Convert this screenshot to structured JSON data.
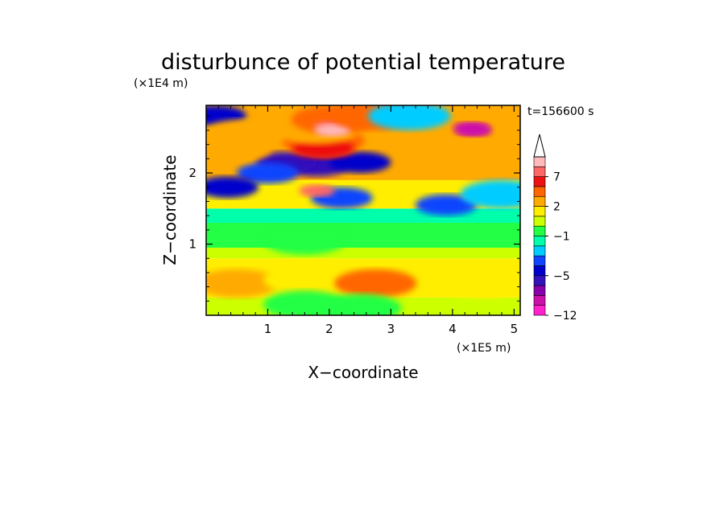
{
  "chart_data": {
    "type": "heatmap",
    "title": "disturbunce of potential temperature",
    "xlabel": "X−coordinate",
    "ylabel": "Z−coordinate",
    "x_unit": "(×1E5 m)",
    "y_unit": "(×1E4 m)",
    "time_label": "t=156600 s",
    "xlim": [
      0,
      5.1
    ],
    "ylim": [
      0,
      2.95
    ],
    "x_ticks": [
      1,
      2,
      3,
      4,
      5
    ],
    "x_tick_labels": [
      "1",
      "2",
      "3",
      "4",
      "5"
    ],
    "y_ticks": [
      1,
      2
    ],
    "y_tick_labels": [
      "1",
      "2"
    ],
    "colorbar": {
      "levels": [
        -12,
        -10,
        -8,
        -6,
        -5,
        -4,
        -3,
        -2,
        -1,
        0,
        1,
        2,
        3,
        5,
        7,
        9
      ],
      "colors": [
        "#ff22cc",
        "#cc10aa",
        "#8800aa",
        "#3311bb",
        "#0000cc",
        "#1144ff",
        "#00ccff",
        "#00ffaa",
        "#22ff44",
        "#ccff00",
        "#ffee00",
        "#ffaa00",
        "#ff6600",
        "#ee1111",
        "#ff6666",
        "#ffbbbb"
      ],
      "tick_values": [
        -12,
        -5,
        -1,
        2,
        7
      ],
      "tick_labels": [
        "−12",
        "−5",
        "−1",
        "2",
        "7"
      ],
      "extend": "max"
    },
    "features": [
      {
        "x": 4.35,
        "z": 2.6,
        "value": -10
      },
      {
        "x": 4.3,
        "z": 2.63,
        "value": -9
      },
      {
        "x": 1.8,
        "z": 2.1,
        "value": -6
      },
      {
        "x": 1.3,
        "z": 2.15,
        "value": -6
      },
      {
        "x": 2.5,
        "z": 2.15,
        "value": -5
      },
      {
        "x": 1.0,
        "z": 2.0,
        "value": -4
      },
      {
        "x": 2.2,
        "z": 1.65,
        "value": -4
      },
      {
        "x": 0.35,
        "z": 1.8,
        "value": -5
      },
      {
        "x": 0.15,
        "z": 2.8,
        "value": -5
      },
      {
        "x": 1.9,
        "z": 2.45,
        "value": 3
      },
      {
        "x": 1.9,
        "z": 2.35,
        "value": 5
      },
      {
        "x": 1.8,
        "z": 1.75,
        "value": 7
      },
      {
        "x": 1.8,
        "z": 2.6,
        "value": 2
      },
      {
        "x": 2.05,
        "z": 2.75,
        "value": 3
      },
      {
        "x": 2.05,
        "z": 2.65,
        "value": 7
      },
      {
        "x": 2.05,
        "z": 2.6,
        "value": 9
      },
      {
        "x": 0.4,
        "z": 2.35,
        "value": 2
      },
      {
        "x": 0.6,
        "z": 2.55,
        "value": 2
      },
      {
        "x": 2.7,
        "z": 2.8,
        "value": 3
      },
      {
        "x": 3.3,
        "z": 2.8,
        "value": -3
      },
      {
        "x": 4.6,
        "z": 2.1,
        "value": 2
      },
      {
        "x": 3.9,
        "z": 1.55,
        "value": -4
      },
      {
        "x": 4.8,
        "z": 1.7,
        "value": -3
      },
      {
        "x": 1.6,
        "z": 1.05,
        "value": -1
      },
      {
        "x": 0.5,
        "z": 0.45,
        "value": 2
      },
      {
        "x": 1.6,
        "z": 0.5,
        "value": 1
      },
      {
        "x": 3.6,
        "z": 0.5,
        "value": 1
      },
      {
        "x": 4.5,
        "z": 0.45,
        "value": 1
      },
      {
        "x": 2.75,
        "z": 0.45,
        "value": 3
      },
      {
        "x": 2.5,
        "z": 0.1,
        "value": -1
      },
      {
        "x": 1.6,
        "z": 0.15,
        "value": -1
      }
    ]
  }
}
